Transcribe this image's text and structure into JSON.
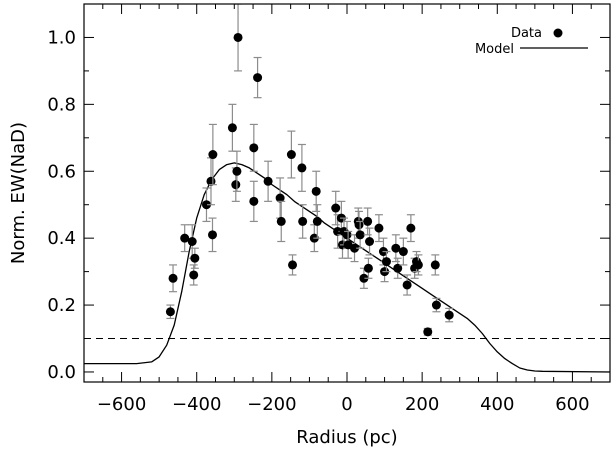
{
  "chart_data": {
    "type": "scatter",
    "xlabel": "Radius (pc)",
    "ylabel": "Norm. EW(NaD)",
    "xlim": [
      -700,
      700
    ],
    "ylim": [
      -0.03,
      1.1
    ],
    "x_ticks": [
      -600,
      -400,
      -200,
      0,
      200,
      400,
      600
    ],
    "x_tick_labels": [
      "−600",
      "−400",
      "−200",
      "0",
      "200",
      "400",
      "600"
    ],
    "y_ticks": [
      0.0,
      0.2,
      0.4,
      0.6,
      0.8,
      1.0
    ],
    "y_tick_labels": [
      "0.0",
      "0.2",
      "0.4",
      "0.6",
      "0.8",
      "1.0"
    ],
    "grid": false,
    "legend": {
      "placement": "top-right",
      "entries": [
        {
          "label": "Data",
          "marker": "filled-circle"
        },
        {
          "label": "Model",
          "marker": "line"
        }
      ]
    },
    "reference_line": {
      "y": 0.1,
      "style": "dashed"
    },
    "series": [
      {
        "name": "Data",
        "kind": "points-with-errorbars",
        "points": [
          {
            "x": -470,
            "y": 0.18,
            "err": 0.02
          },
          {
            "x": -463,
            "y": 0.28,
            "err": 0.04
          },
          {
            "x": -432,
            "y": 0.4,
            "err": 0.04
          },
          {
            "x": -412,
            "y": 0.39,
            "err": 0.05
          },
          {
            "x": -408,
            "y": 0.29,
            "err": 0.03
          },
          {
            "x": -405,
            "y": 0.34,
            "err": 0.03
          },
          {
            "x": -374,
            "y": 0.5,
            "err": 0.05
          },
          {
            "x": -362,
            "y": 0.57,
            "err": 0.07
          },
          {
            "x": -358,
            "y": 0.41,
            "err": 0.05
          },
          {
            "x": -357,
            "y": 0.65,
            "err": 0.09
          },
          {
            "x": -305,
            "y": 0.73,
            "err": 0.07
          },
          {
            "x": -296,
            "y": 0.56,
            "err": 0.05
          },
          {
            "x": -293,
            "y": 0.6,
            "err": 0.06
          },
          {
            "x": -290,
            "y": 1.0,
            "err": 0.1
          },
          {
            "x": -248,
            "y": 0.67,
            "err": 0.07
          },
          {
            "x": -248,
            "y": 0.51,
            "err": 0.06
          },
          {
            "x": -238,
            "y": 0.88,
            "err": 0.06
          },
          {
            "x": -210,
            "y": 0.57,
            "err": 0.06
          },
          {
            "x": -178,
            "y": 0.52,
            "err": 0.06
          },
          {
            "x": -175,
            "y": 0.45,
            "err": 0.06
          },
          {
            "x": -148,
            "y": 0.65,
            "err": 0.07
          },
          {
            "x": -145,
            "y": 0.32,
            "err": 0.03
          },
          {
            "x": -120,
            "y": 0.61,
            "err": 0.07
          },
          {
            "x": -118,
            "y": 0.45,
            "err": 0.05
          },
          {
            "x": -87,
            "y": 0.4,
            "err": 0.04
          },
          {
            "x": -82,
            "y": 0.54,
            "err": 0.06
          },
          {
            "x": -79,
            "y": 0.45,
            "err": 0.05
          },
          {
            "x": -30,
            "y": 0.49,
            "err": 0.05
          },
          {
            "x": -25,
            "y": 0.42,
            "err": 0.05
          },
          {
            "x": -15,
            "y": 0.46,
            "err": 0.05
          },
          {
            "x": -12,
            "y": 0.38,
            "err": 0.04
          },
          {
            "x": -8,
            "y": 0.42,
            "err": 0.04
          },
          {
            "x": 0,
            "y": 0.41,
            "err": 0.04
          },
          {
            "x": 3,
            "y": 0.38,
            "err": 0.04
          },
          {
            "x": 20,
            "y": 0.37,
            "err": 0.04
          },
          {
            "x": 30,
            "y": 0.45,
            "err": 0.04
          },
          {
            "x": 32,
            "y": 0.44,
            "err": 0.04
          },
          {
            "x": 35,
            "y": 0.41,
            "err": 0.04
          },
          {
            "x": 45,
            "y": 0.28,
            "err": 0.03
          },
          {
            "x": 55,
            "y": 0.45,
            "err": 0.04
          },
          {
            "x": 57,
            "y": 0.31,
            "err": 0.03
          },
          {
            "x": 60,
            "y": 0.39,
            "err": 0.04
          },
          {
            "x": 85,
            "y": 0.43,
            "err": 0.04
          },
          {
            "x": 97,
            "y": 0.36,
            "err": 0.04
          },
          {
            "x": 100,
            "y": 0.3,
            "err": 0.03
          },
          {
            "x": 105,
            "y": 0.33,
            "err": 0.03
          },
          {
            "x": 130,
            "y": 0.37,
            "err": 0.04
          },
          {
            "x": 135,
            "y": 0.31,
            "err": 0.03
          },
          {
            "x": 150,
            "y": 0.36,
            "err": 0.04
          },
          {
            "x": 160,
            "y": 0.26,
            "err": 0.03
          },
          {
            "x": 170,
            "y": 0.43,
            "err": 0.04
          },
          {
            "x": 180,
            "y": 0.31,
            "err": 0.03
          },
          {
            "x": 185,
            "y": 0.33,
            "err": 0.03
          },
          {
            "x": 190,
            "y": 0.32,
            "err": 0.03
          },
          {
            "x": 215,
            "y": 0.12,
            "err": 0.01
          },
          {
            "x": 235,
            "y": 0.32,
            "err": 0.03
          },
          {
            "x": 238,
            "y": 0.2,
            "err": 0.02
          },
          {
            "x": 272,
            "y": 0.17,
            "err": 0.02
          }
        ]
      },
      {
        "name": "Model",
        "kind": "line",
        "x": [
          -700,
          -560,
          -520,
          -500,
          -480,
          -460,
          -440,
          -420,
          -400,
          -380,
          -360,
          -340,
          -320,
          -300,
          -280,
          -260,
          -240,
          -220,
          -200,
          -180,
          -160,
          -140,
          -120,
          -100,
          -80,
          -60,
          -40,
          -20,
          0,
          20,
          40,
          60,
          80,
          100,
          120,
          140,
          160,
          180,
          200,
          220,
          240,
          260,
          280,
          300,
          320,
          340,
          360,
          380,
          400,
          420,
          440,
          460,
          480,
          500,
          520,
          700
        ],
        "y": [
          0.025,
          0.025,
          0.03,
          0.045,
          0.08,
          0.14,
          0.24,
          0.36,
          0.46,
          0.53,
          0.575,
          0.605,
          0.62,
          0.625,
          0.62,
          0.61,
          0.595,
          0.58,
          0.56,
          0.545,
          0.53,
          0.51,
          0.495,
          0.48,
          0.465,
          0.445,
          0.43,
          0.415,
          0.4,
          0.385,
          0.37,
          0.355,
          0.34,
          0.325,
          0.31,
          0.295,
          0.28,
          0.265,
          0.25,
          0.235,
          0.22,
          0.205,
          0.19,
          0.175,
          0.16,
          0.14,
          0.115,
          0.085,
          0.06,
          0.04,
          0.025,
          0.012,
          0.006,
          0.003,
          0.002,
          0.0
        ]
      }
    ]
  }
}
